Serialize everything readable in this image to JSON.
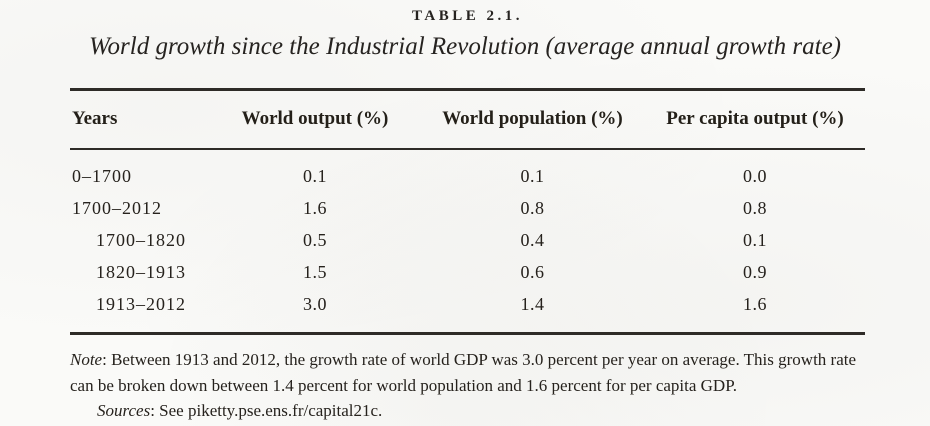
{
  "page": {
    "title": "TABLE 2.1.",
    "subtitle": "World growth since the Industrial Revolution (average annual growth rate)"
  },
  "table": {
    "headers": {
      "years": "Years",
      "world_output": "World output (%)",
      "world_population": "World population (%)",
      "per_capita_output": "Per capita output (%)"
    },
    "rows": [
      {
        "years": "0–1700",
        "world_output": "0.1",
        "world_population": "0.1",
        "per_capita_output": "0.0",
        "indented": false
      },
      {
        "years": "1700–2012",
        "world_output": "1.6",
        "world_population": "0.8",
        "per_capita_output": "0.8",
        "indented": false
      },
      {
        "years": "1700–1820",
        "world_output": "0.5",
        "world_population": "0.4",
        "per_capita_output": "0.1",
        "indented": true
      },
      {
        "years": "1820–1913",
        "world_output": "1.5",
        "world_population": "0.6",
        "per_capita_output": "0.9",
        "indented": true
      },
      {
        "years": "1913–2012",
        "world_output": "3.0",
        "world_population": "1.4",
        "per_capita_output": "1.6",
        "indented": true
      }
    ]
  },
  "notes": {
    "note_label": "Note",
    "note_text": ": Between 1913 and 2012, the growth rate of world GDP was 3.0 percent per year on average. This growth rate can be broken down between 1.4 percent for world population and 1.6 percent for per capita GDP.",
    "sources_label": "Sources",
    "sources_text": ": See piketty.pse.ens.fr/capital21c."
  },
  "colors": {
    "background": "#fafaf8",
    "text": "#26221d",
    "rule": "#2e2b27"
  }
}
